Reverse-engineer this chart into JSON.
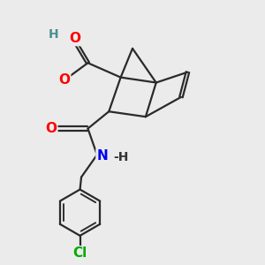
{
  "bg_color": "#ebebeb",
  "bond_color": "#2a2a2a",
  "bond_width": 1.6,
  "atom_colors": {
    "O": "#ff0000",
    "N": "#0000ee",
    "Cl": "#00aa00",
    "H_color": "#4a9090"
  },
  "font_size_atom": 11,
  "font_size_NH": 10,
  "font_size_H": 10
}
